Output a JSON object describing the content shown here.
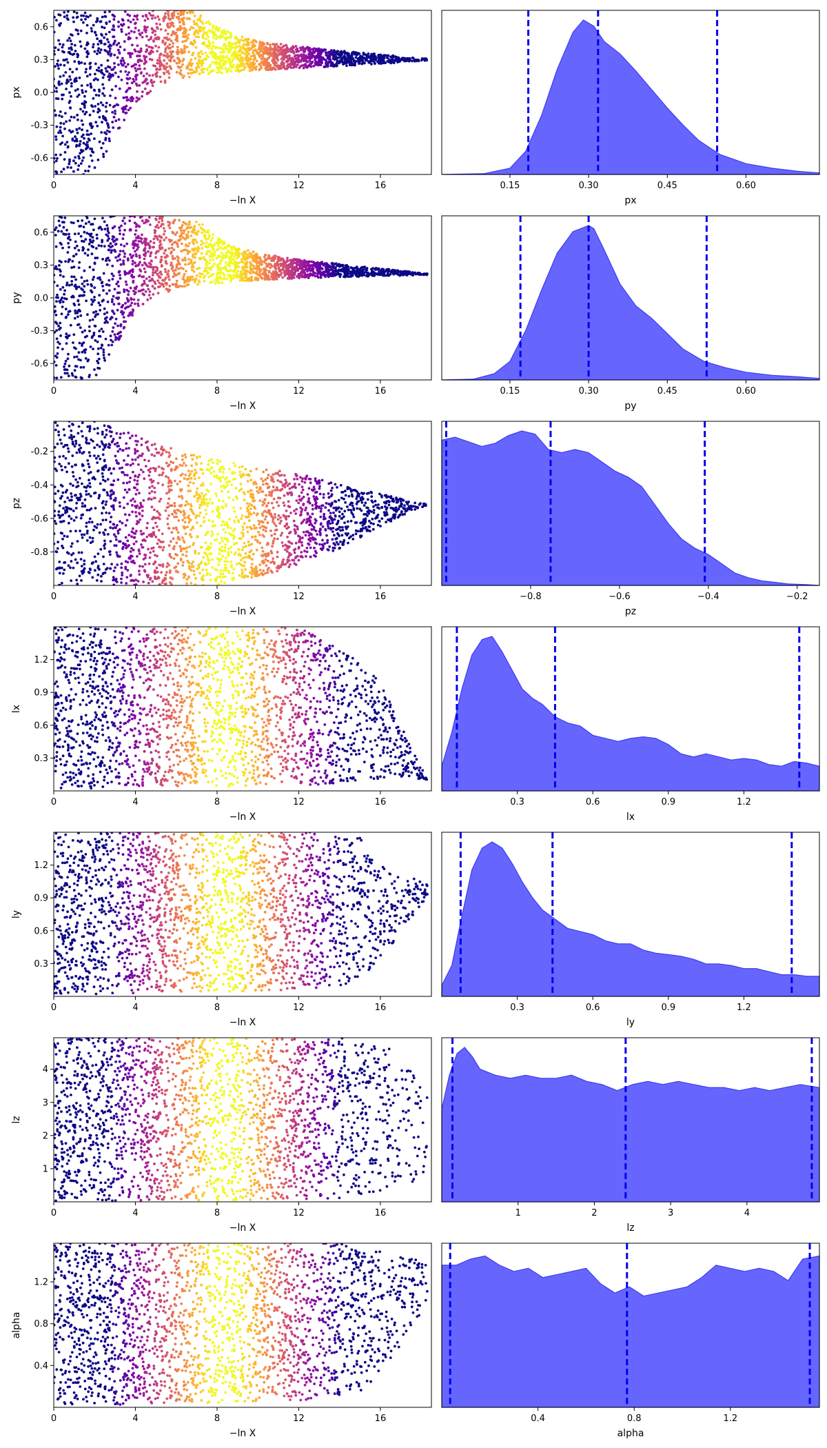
{
  "colors": {
    "kde_fill": "#6666ff",
    "kde_edge": "#3b3bf0",
    "quantile_line": "#0000ee",
    "colormap": "plasma"
  },
  "chart_data": [
    {
      "type": "scatter",
      "panel": "trace-px",
      "xlabel": "−ln X",
      "ylabel": "px",
      "xlim": [
        0,
        18.5
      ],
      "ylim": [
        -0.75,
        0.75
      ],
      "xticks": [
        "0",
        "4",
        "8",
        "12",
        "16"
      ],
      "yticks": [
        "-0.6",
        "-0.3",
        "0.0",
        "0.3",
        "0.6"
      ],
      "sample_envelope": {
        "x": [
          0,
          1,
          2,
          3,
          4,
          5,
          6,
          7,
          8,
          9,
          10,
          12,
          14,
          16,
          18.3
        ],
        "upper": [
          0.75,
          0.75,
          0.75,
          0.75,
          0.75,
          0.75,
          0.75,
          0.75,
          0.6,
          0.52,
          0.47,
          0.42,
          0.38,
          0.35,
          0.31
        ],
        "lower": [
          -0.75,
          -0.75,
          -0.75,
          -0.4,
          -0.1,
          0.04,
          0.12,
          0.15,
          0.17,
          0.19,
          0.2,
          0.22,
          0.24,
          0.26,
          0.29
        ]
      },
      "color_peak_x": 8.2
    },
    {
      "type": "area",
      "panel": "kde-px",
      "xlabel": "px",
      "xlim": [
        0.02,
        0.74
      ],
      "xticks": [
        0.15,
        0.3,
        0.45,
        0.6
      ],
      "xtick_labels": [
        "0.15",
        "0.30",
        "0.45",
        "0.60"
      ],
      "quantiles": [
        0.185,
        0.318,
        0.545
      ],
      "kde": {
        "x": [
          0.02,
          0.1,
          0.15,
          0.18,
          0.21,
          0.24,
          0.27,
          0.29,
          0.31,
          0.33,
          0.36,
          0.39,
          0.42,
          0.45,
          0.48,
          0.51,
          0.55,
          0.6,
          0.65,
          0.7,
          0.74
        ],
        "y": [
          0.0,
          0.005,
          0.04,
          0.15,
          0.38,
          0.68,
          0.92,
          1.0,
          0.96,
          0.86,
          0.78,
          0.67,
          0.55,
          0.43,
          0.32,
          0.22,
          0.13,
          0.07,
          0.04,
          0.02,
          0.01
        ]
      }
    },
    {
      "type": "scatter",
      "panel": "trace-py",
      "xlabel": "−ln X",
      "ylabel": "py",
      "xlim": [
        0,
        18.5
      ],
      "ylim": [
        -0.75,
        0.75
      ],
      "xticks": [
        "0",
        "4",
        "8",
        "12",
        "16"
      ],
      "yticks": [
        "-0.6",
        "-0.3",
        "0.0",
        "0.3",
        "0.6"
      ],
      "sample_envelope": {
        "x": [
          0,
          1,
          2,
          3,
          4,
          5,
          6,
          7,
          8,
          9,
          10,
          12,
          14,
          16,
          18.3
        ],
        "upper": [
          0.75,
          0.75,
          0.75,
          0.75,
          0.75,
          0.75,
          0.75,
          0.72,
          0.55,
          0.46,
          0.41,
          0.35,
          0.31,
          0.27,
          0.22
        ],
        "lower": [
          -0.75,
          -0.75,
          -0.75,
          -0.45,
          -0.12,
          0.02,
          0.08,
          0.11,
          0.13,
          0.15,
          0.16,
          0.18,
          0.19,
          0.2,
          0.21
        ]
      },
      "color_peak_x": 8.2
    },
    {
      "type": "area",
      "panel": "kde-py",
      "xlabel": "py",
      "xlim": [
        0.02,
        0.74
      ],
      "xticks": [
        0.15,
        0.3,
        0.45,
        0.6
      ],
      "xtick_labels": [
        "0.15",
        "0.30",
        "0.45",
        "0.60"
      ],
      "quantiles": [
        0.17,
        0.3,
        0.525
      ],
      "kde": {
        "x": [
          0.02,
          0.08,
          0.12,
          0.15,
          0.18,
          0.21,
          0.24,
          0.27,
          0.3,
          0.31,
          0.33,
          0.36,
          0.39,
          0.42,
          0.45,
          0.48,
          0.52,
          0.56,
          0.6,
          0.65,
          0.7,
          0.74
        ],
        "y": [
          0.0,
          0.005,
          0.04,
          0.12,
          0.32,
          0.58,
          0.82,
          0.96,
          1.0,
          0.98,
          0.84,
          0.62,
          0.48,
          0.4,
          0.3,
          0.2,
          0.12,
          0.08,
          0.05,
          0.03,
          0.02,
          0.01
        ]
      }
    },
    {
      "type": "scatter",
      "panel": "trace-pz",
      "xlabel": "−ln X",
      "ylabel": "pz",
      "xlim": [
        0,
        18.5
      ],
      "ylim": [
        -1.0,
        -0.02
      ],
      "xticks": [
        "0",
        "4",
        "8",
        "12",
        "16"
      ],
      "yticks": [
        "-0.8",
        "-0.6",
        "-0.4",
        "-0.2"
      ],
      "sample_envelope": {
        "x": [
          0,
          2,
          4,
          6,
          8,
          10,
          12,
          14,
          16,
          17.5,
          18.3
        ],
        "upper": [
          -0.02,
          -0.02,
          -0.1,
          -0.18,
          -0.25,
          -0.3,
          -0.33,
          -0.4,
          -0.45,
          -0.5,
          -0.51
        ],
        "lower": [
          -1.0,
          -1.0,
          -1.0,
          -1.0,
          -1.0,
          -0.95,
          -0.88,
          -0.78,
          -0.65,
          -0.56,
          -0.52
        ]
      },
      "color_peak_x": 8.2
    },
    {
      "type": "area",
      "panel": "kde-pz",
      "xlabel": "pz",
      "xlim": [
        -1.0,
        -0.15
      ],
      "xticks": [
        -0.8,
        -0.6,
        -0.4,
        -0.2
      ],
      "xtick_labels": [
        "−0.8",
        "−0.6",
        "−0.4",
        "−0.2"
      ],
      "quantiles": [
        -0.99,
        -0.755,
        -0.408
      ],
      "kde": {
        "x": [
          -1.0,
          -0.97,
          -0.94,
          -0.91,
          -0.88,
          -0.85,
          -0.82,
          -0.79,
          -0.76,
          -0.73,
          -0.7,
          -0.67,
          -0.64,
          -0.61,
          -0.58,
          -0.55,
          -0.52,
          -0.49,
          -0.46,
          -0.43,
          -0.4,
          -0.37,
          -0.34,
          -0.31,
          -0.28,
          -0.25,
          -0.22,
          -0.18,
          -0.15
        ],
        "y": [
          0.94,
          0.96,
          0.93,
          0.9,
          0.92,
          0.97,
          1.0,
          0.98,
          0.88,
          0.86,
          0.88,
          0.86,
          0.8,
          0.74,
          0.7,
          0.64,
          0.52,
          0.4,
          0.3,
          0.24,
          0.2,
          0.14,
          0.08,
          0.05,
          0.03,
          0.02,
          0.01,
          0.005,
          0.0
        ]
      }
    },
    {
      "type": "scatter",
      "panel": "trace-lx",
      "xlabel": "−ln X",
      "ylabel": "lx",
      "xlim": [
        0,
        18.5
      ],
      "ylim": [
        0.0,
        1.5
      ],
      "xticks": [
        "0",
        "4",
        "8",
        "12",
        "16"
      ],
      "yticks": [
        "0.3",
        "0.6",
        "0.9",
        "1.2"
      ],
      "sample_envelope": {
        "x": [
          0,
          2,
          4,
          6,
          8,
          10,
          12,
          13,
          14,
          15,
          16,
          17,
          18.3
        ],
        "upper": [
          1.5,
          1.5,
          1.5,
          1.5,
          1.5,
          1.5,
          1.5,
          1.4,
          1.3,
          1.2,
          1.0,
          0.6,
          0.1
        ],
        "lower": [
          0.02,
          0.02,
          0.03,
          0.04,
          0.04,
          0.05,
          0.05,
          0.06,
          0.07,
          0.08,
          0.09,
          0.1,
          0.1
        ]
      },
      "color_peak_x": 8.4
    },
    {
      "type": "area",
      "panel": "kde-lx",
      "xlabel": "lx",
      "xlim": [
        0.0,
        1.5
      ],
      "xticks": [
        0.3,
        0.6,
        0.9,
        1.2
      ],
      "xtick_labels": [
        "0.3",
        "0.6",
        "0.9",
        "1.2"
      ],
      "quantiles": [
        0.06,
        0.45,
        1.42
      ],
      "kde": {
        "x": [
          0.0,
          0.04,
          0.08,
          0.12,
          0.16,
          0.2,
          0.24,
          0.28,
          0.32,
          0.36,
          0.4,
          0.45,
          0.5,
          0.55,
          0.6,
          0.65,
          0.7,
          0.75,
          0.8,
          0.85,
          0.9,
          0.95,
          1.0,
          1.05,
          1.1,
          1.15,
          1.2,
          1.25,
          1.3,
          1.35,
          1.4,
          1.45,
          1.5
        ],
        "y": [
          0.16,
          0.38,
          0.66,
          0.88,
          0.98,
          1.0,
          0.9,
          0.78,
          0.66,
          0.6,
          0.56,
          0.48,
          0.44,
          0.42,
          0.36,
          0.34,
          0.32,
          0.34,
          0.35,
          0.34,
          0.3,
          0.24,
          0.22,
          0.24,
          0.22,
          0.2,
          0.21,
          0.2,
          0.17,
          0.16,
          0.19,
          0.18,
          0.16
        ]
      }
    },
    {
      "type": "scatter",
      "panel": "trace-ly",
      "xlabel": "−ln X",
      "ylabel": "ly",
      "xlim": [
        0,
        18.5
      ],
      "ylim": [
        0.0,
        1.5
      ],
      "xticks": [
        "0",
        "4",
        "8",
        "12",
        "16"
      ],
      "yticks": [
        "0.3",
        "0.6",
        "0.9",
        "1.2"
      ],
      "sample_envelope": {
        "x": [
          0,
          2,
          4,
          6,
          8,
          10,
          12,
          13,
          14,
          15,
          16,
          17,
          18.3
        ],
        "upper": [
          1.5,
          1.5,
          1.5,
          1.5,
          1.5,
          1.5,
          1.5,
          1.5,
          1.5,
          1.45,
          1.2,
          1.1,
          1.05
        ],
        "lower": [
          0.02,
          0.02,
          0.03,
          0.04,
          0.04,
          0.05,
          0.06,
          0.07,
          0.1,
          0.15,
          0.3,
          0.6,
          0.9
        ]
      },
      "color_peak_x": 8.4
    },
    {
      "type": "area",
      "panel": "kde-ly",
      "xlabel": "ly",
      "xlim": [
        0.0,
        1.5
      ],
      "xticks": [
        0.3,
        0.6,
        0.9,
        1.2
      ],
      "xtick_labels": [
        "0.3",
        "0.6",
        "0.9",
        "1.2"
      ],
      "quantiles": [
        0.075,
        0.44,
        1.39
      ],
      "kde": {
        "x": [
          0.0,
          0.04,
          0.08,
          0.12,
          0.16,
          0.2,
          0.24,
          0.28,
          0.32,
          0.36,
          0.4,
          0.45,
          0.5,
          0.55,
          0.6,
          0.65,
          0.7,
          0.75,
          0.8,
          0.85,
          0.9,
          0.95,
          1.0,
          1.05,
          1.1,
          1.15,
          1.2,
          1.25,
          1.3,
          1.35,
          1.4,
          1.45,
          1.5
        ],
        "y": [
          0.07,
          0.2,
          0.52,
          0.82,
          0.96,
          1.0,
          0.96,
          0.86,
          0.74,
          0.64,
          0.56,
          0.5,
          0.44,
          0.42,
          0.4,
          0.36,
          0.34,
          0.34,
          0.3,
          0.28,
          0.27,
          0.26,
          0.24,
          0.21,
          0.21,
          0.2,
          0.18,
          0.18,
          0.16,
          0.14,
          0.14,
          0.13,
          0.13
        ]
      }
    },
    {
      "type": "scatter",
      "panel": "trace-lz",
      "xlabel": "−ln X",
      "ylabel": "lz",
      "xlim": [
        0,
        18.5
      ],
      "ylim": [
        0.0,
        4.95
      ],
      "xticks": [
        "0",
        "4",
        "8",
        "12",
        "16"
      ],
      "yticks": [
        "1",
        "2",
        "3",
        "4"
      ],
      "sample_envelope": {
        "x": [
          0,
          2,
          4,
          6,
          8,
          10,
          12,
          13,
          14,
          15,
          16,
          17,
          18.3
        ],
        "upper": [
          4.95,
          4.95,
          4.95,
          4.95,
          4.95,
          4.95,
          4.95,
          4.95,
          4.95,
          4.9,
          4.8,
          4.4,
          3.2
        ],
        "lower": [
          0.02,
          0.02,
          0.03,
          0.04,
          0.04,
          0.05,
          0.06,
          0.08,
          0.1,
          0.2,
          0.3,
          0.5,
          0.7
        ]
      },
      "color_peak_x": 8.4
    },
    {
      "type": "area",
      "panel": "kde-lz",
      "xlabel": "lz",
      "xlim": [
        0.0,
        4.95
      ],
      "xticks": [
        1,
        2,
        3,
        4
      ],
      "xtick_labels": [
        "1",
        "2",
        "3",
        "4"
      ],
      "quantiles": [
        0.14,
        2.41,
        4.85
      ],
      "kde": {
        "x": [
          0.0,
          0.1,
          0.2,
          0.3,
          0.4,
          0.5,
          0.7,
          0.9,
          1.1,
          1.3,
          1.5,
          1.7,
          1.9,
          2.1,
          2.3,
          2.5,
          2.7,
          2.9,
          3.1,
          3.3,
          3.5,
          3.7,
          3.9,
          4.1,
          4.3,
          4.5,
          4.7,
          4.95
        ],
        "y": [
          0.6,
          0.82,
          0.96,
          1.0,
          0.94,
          0.86,
          0.82,
          0.8,
          0.82,
          0.8,
          0.8,
          0.82,
          0.78,
          0.76,
          0.72,
          0.76,
          0.78,
          0.76,
          0.78,
          0.76,
          0.74,
          0.74,
          0.72,
          0.74,
          0.72,
          0.74,
          0.76,
          0.74
        ]
      }
    },
    {
      "type": "scatter",
      "panel": "trace-alpha",
      "xlabel": "−ln X",
      "ylabel": "alpha",
      "xlim": [
        0,
        18.5
      ],
      "ylim": [
        0.0,
        1.57
      ],
      "xticks": [
        "0",
        "4",
        "8",
        "12",
        "16"
      ],
      "yticks": [
        "0.4",
        "0.8",
        "1.2"
      ],
      "sample_envelope": {
        "x": [
          0,
          2,
          4,
          6,
          8,
          10,
          12,
          13,
          14,
          15,
          16,
          17,
          18.3
        ],
        "upper": [
          1.57,
          1.57,
          1.57,
          1.57,
          1.57,
          1.57,
          1.57,
          1.57,
          1.57,
          1.55,
          1.5,
          1.45,
          1.4
        ],
        "lower": [
          0.02,
          0.02,
          0.03,
          0.04,
          0.04,
          0.05,
          0.06,
          0.08,
          0.1,
          0.15,
          0.3,
          0.6,
          1.0
        ]
      },
      "color_peak_x": 8.4
    },
    {
      "type": "area",
      "panel": "kde-alpha",
      "xlabel": "alpha",
      "xlim": [
        0.0,
        1.57
      ],
      "xticks": [
        0.4,
        0.8,
        1.2
      ],
      "xtick_labels": [
        "0.4",
        "0.8",
        "1.2"
      ],
      "quantiles": [
        0.035,
        0.77,
        1.53
      ],
      "kde": {
        "x": [
          0.0,
          0.06,
          0.12,
          0.18,
          0.24,
          0.3,
          0.36,
          0.42,
          0.48,
          0.54,
          0.6,
          0.66,
          0.72,
          0.78,
          0.84,
          0.9,
          0.96,
          1.02,
          1.08,
          1.14,
          1.2,
          1.26,
          1.32,
          1.38,
          1.44,
          1.5,
          1.57
        ],
        "y": [
          0.92,
          0.92,
          0.96,
          0.98,
          0.92,
          0.88,
          0.9,
          0.84,
          0.86,
          0.88,
          0.9,
          0.8,
          0.74,
          0.78,
          0.72,
          0.74,
          0.76,
          0.78,
          0.84,
          0.92,
          0.9,
          0.88,
          0.9,
          0.88,
          0.82,
          0.96,
          0.98
        ]
      }
    }
  ]
}
